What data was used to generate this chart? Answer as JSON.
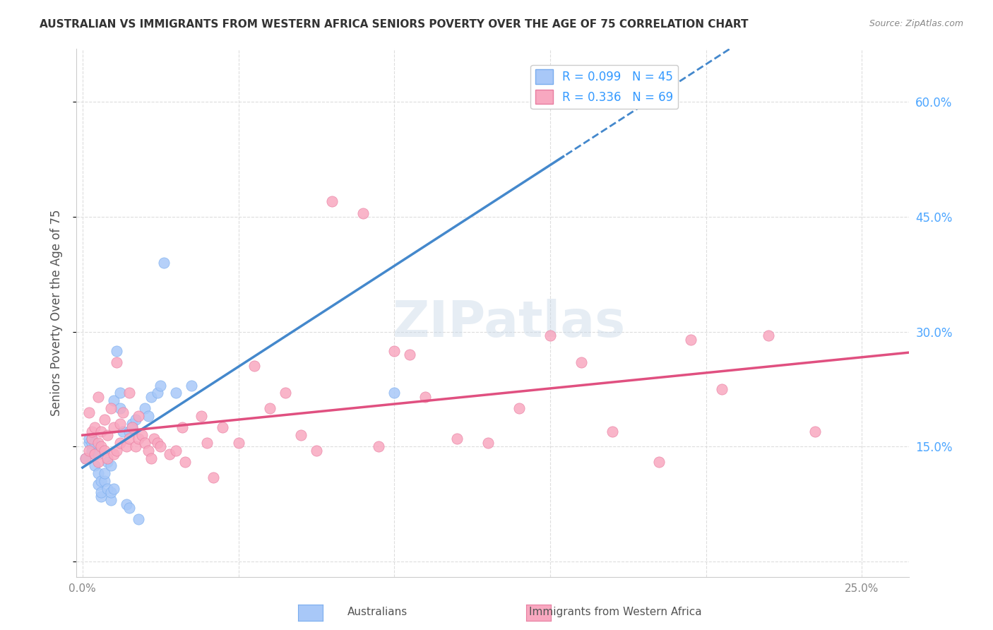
{
  "title": "AUSTRALIAN VS IMMIGRANTS FROM WESTERN AFRICA SENIORS POVERTY OVER THE AGE OF 75 CORRELATION CHART",
  "source": "Source: ZipAtlas.com",
  "xlabel_label": "",
  "ylabel_label": "Seniors Poverty Over the Age of 75",
  "x_ticks": [
    0.0,
    0.05,
    0.1,
    0.15,
    0.2,
    0.25
  ],
  "x_tick_labels": [
    "0.0%",
    "",
    "",
    "",
    "",
    "25.0%"
  ],
  "y_ticks": [
    0.0,
    0.15,
    0.3,
    0.45,
    0.6
  ],
  "y_tick_labels": [
    "",
    "15.0%",
    "30.0%",
    "45.0%",
    "60.0%"
  ],
  "xlim": [
    -0.002,
    0.265
  ],
  "ylim": [
    -0.02,
    0.67
  ],
  "background_color": "#ffffff",
  "grid_color": "#dddddd",
  "title_color": "#333333",
  "axis_label_color": "#555555",
  "tick_label_color_right": "#4da6ff",
  "R_aus": 0.099,
  "N_aus": 45,
  "R_waf": 0.336,
  "N_waf": 69,
  "legend_label_aus": "Australians",
  "legend_label_waf": "Immigrants from Western Africa",
  "dot_color_aus": "#a8c8f8",
  "dot_color_waf": "#f8a8c0",
  "dot_edge_aus": "#7aadee",
  "dot_edge_waf": "#e87da0",
  "trend_color_aus": "#4488cc",
  "trend_color_waf": "#e05080",
  "watermark": "ZIPatlas",
  "australians_x": [
    0.001,
    0.002,
    0.002,
    0.003,
    0.003,
    0.003,
    0.004,
    0.004,
    0.004,
    0.005,
    0.005,
    0.005,
    0.006,
    0.006,
    0.006,
    0.007,
    0.007,
    0.008,
    0.008,
    0.009,
    0.009,
    0.009,
    0.01,
    0.01,
    0.011,
    0.012,
    0.012,
    0.013,
    0.014,
    0.015,
    0.015,
    0.016,
    0.016,
    0.017,
    0.018,
    0.02,
    0.021,
    0.022,
    0.024,
    0.025,
    0.026,
    0.03,
    0.035,
    0.1,
    0.155
  ],
  "australians_y": [
    0.135,
    0.155,
    0.16,
    0.145,
    0.155,
    0.16,
    0.125,
    0.14,
    0.155,
    0.1,
    0.115,
    0.14,
    0.085,
    0.09,
    0.105,
    0.105,
    0.115,
    0.095,
    0.13,
    0.08,
    0.09,
    0.125,
    0.095,
    0.21,
    0.275,
    0.2,
    0.22,
    0.17,
    0.075,
    0.07,
    0.17,
    0.175,
    0.18,
    0.185,
    0.055,
    0.2,
    0.19,
    0.215,
    0.22,
    0.23,
    0.39,
    0.22,
    0.23,
    0.22,
    0.6
  ],
  "western_africa_x": [
    0.001,
    0.002,
    0.002,
    0.003,
    0.003,
    0.004,
    0.004,
    0.005,
    0.005,
    0.005,
    0.006,
    0.006,
    0.007,
    0.007,
    0.008,
    0.008,
    0.009,
    0.01,
    0.01,
    0.011,
    0.011,
    0.012,
    0.012,
    0.013,
    0.014,
    0.015,
    0.015,
    0.016,
    0.017,
    0.018,
    0.018,
    0.019,
    0.02,
    0.021,
    0.022,
    0.023,
    0.024,
    0.025,
    0.028,
    0.03,
    0.032,
    0.033,
    0.038,
    0.04,
    0.042,
    0.045,
    0.05,
    0.055,
    0.06,
    0.065,
    0.07,
    0.075,
    0.08,
    0.09,
    0.095,
    0.1,
    0.105,
    0.11,
    0.12,
    0.13,
    0.14,
    0.15,
    0.16,
    0.17,
    0.185,
    0.195,
    0.205,
    0.22,
    0.235
  ],
  "western_africa_y": [
    0.135,
    0.145,
    0.195,
    0.16,
    0.17,
    0.14,
    0.175,
    0.13,
    0.155,
    0.215,
    0.15,
    0.17,
    0.145,
    0.185,
    0.135,
    0.165,
    0.2,
    0.14,
    0.175,
    0.145,
    0.26,
    0.155,
    0.18,
    0.195,
    0.15,
    0.16,
    0.22,
    0.175,
    0.15,
    0.16,
    0.19,
    0.165,
    0.155,
    0.145,
    0.135,
    0.16,
    0.155,
    0.15,
    0.14,
    0.145,
    0.175,
    0.13,
    0.19,
    0.155,
    0.11,
    0.175,
    0.155,
    0.255,
    0.2,
    0.22,
    0.165,
    0.145,
    0.47,
    0.455,
    0.15,
    0.275,
    0.27,
    0.215,
    0.16,
    0.155,
    0.2,
    0.295,
    0.26,
    0.17,
    0.13,
    0.29,
    0.225,
    0.295,
    0.17
  ]
}
